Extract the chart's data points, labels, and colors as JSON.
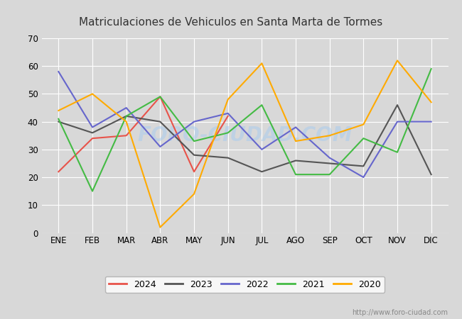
{
  "title": "Matriculaciones de Vehiculos en Santa Marta de Tormes",
  "months": [
    "ENE",
    "FEB",
    "MAR",
    "ABR",
    "MAY",
    "JUN",
    "JUL",
    "AGO",
    "SEP",
    "OCT",
    "NOV",
    "DIC"
  ],
  "series": {
    "2024": [
      22,
      34,
      35,
      49,
      22,
      42,
      null,
      null,
      null,
      null,
      null,
      null
    ],
    "2023": [
      40,
      36,
      42,
      40,
      28,
      27,
      22,
      26,
      25,
      24,
      46,
      21
    ],
    "2022": [
      58,
      38,
      45,
      31,
      40,
      43,
      30,
      38,
      27,
      20,
      40,
      40
    ],
    "2021": [
      41,
      15,
      42,
      49,
      33,
      36,
      46,
      21,
      21,
      34,
      29,
      59
    ],
    "2020": [
      44,
      50,
      40,
      2,
      14,
      48,
      61,
      33,
      35,
      39,
      62,
      47
    ]
  },
  "colors": {
    "2024": "#e8534a",
    "2023": "#555555",
    "2022": "#6666cc",
    "2021": "#44bb44",
    "2020": "#ffaa00"
  },
  "ylim": [
    0,
    70
  ],
  "yticks": [
    0,
    10,
    20,
    30,
    40,
    50,
    60,
    70
  ],
  "fig_bgcolor": "#d8d8d8",
  "plot_bgcolor": "#d8d8d8",
  "title_color": "#333333",
  "title_fontsize": 11,
  "watermark_text": "FORO-CIUDAD.COM",
  "watermark_color": "#aaccee",
  "watermark_alpha": 0.55,
  "url": "http://www.foro-ciudad.com",
  "grid_color": "white",
  "tick_fontsize": 8.5,
  "linewidth": 1.5
}
